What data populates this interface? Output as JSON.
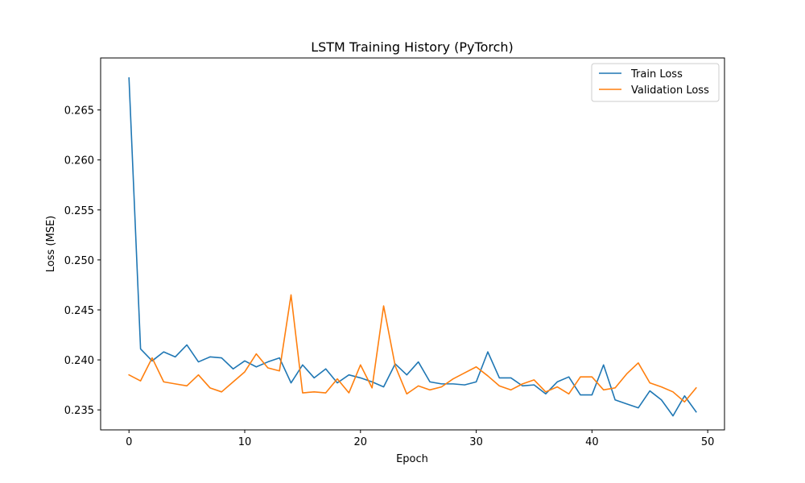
{
  "chart_data": {
    "type": "line",
    "title": "LSTM Training History (PyTorch)",
    "xlabel": "Epoch",
    "ylabel": "Loss (MSE)",
    "xlim": [
      -2.45,
      51.45
    ],
    "ylim": [
      0.233,
      0.2702
    ],
    "xticks": [
      0,
      10,
      20,
      30,
      40,
      50
    ],
    "yticks": [
      0.235,
      0.24,
      0.245,
      0.25,
      0.255,
      0.26,
      0.265
    ],
    "ytick_labels": [
      "0.235",
      "0.240",
      "0.245",
      "0.250",
      "0.255",
      "0.260",
      "0.265"
    ],
    "grid": false,
    "legend_position": "top-right",
    "x": [
      0,
      1,
      2,
      3,
      4,
      5,
      6,
      7,
      8,
      9,
      10,
      11,
      12,
      13,
      14,
      15,
      16,
      17,
      18,
      19,
      20,
      21,
      22,
      23,
      24,
      25,
      26,
      27,
      28,
      29,
      30,
      31,
      32,
      33,
      34,
      35,
      36,
      37,
      38,
      39,
      40,
      41,
      42,
      43,
      44,
      45,
      46,
      47,
      48,
      49
    ],
    "series": [
      {
        "name": "Train Loss",
        "color": "#1f77b4",
        "values": [
          0.2682,
          0.2411,
          0.2399,
          0.2408,
          0.2403,
          0.2415,
          0.2398,
          0.2403,
          0.2402,
          0.2391,
          0.2399,
          0.2393,
          0.2398,
          0.2402,
          0.2377,
          0.2395,
          0.2382,
          0.2391,
          0.2377,
          0.2385,
          0.2382,
          0.2378,
          0.2373,
          0.2396,
          0.2385,
          0.2398,
          0.2378,
          0.2376,
          0.2376,
          0.2375,
          0.2378,
          0.2408,
          0.2382,
          0.2382,
          0.2374,
          0.2375,
          0.2366,
          0.2378,
          0.2383,
          0.2365,
          0.2365,
          0.2395,
          0.236,
          0.2356,
          0.2352,
          0.2369,
          0.236,
          0.2344,
          0.2364,
          0.2348
        ]
      },
      {
        "name": "Validation Loss",
        "color": "#ff7f0e",
        "values": [
          0.2385,
          0.2379,
          0.2402,
          0.2378,
          0.2376,
          0.2374,
          0.2385,
          0.2372,
          0.2368,
          0.2378,
          0.2388,
          0.2406,
          0.2392,
          0.2389,
          0.2465,
          0.2367,
          0.2368,
          0.2367,
          0.2381,
          0.2367,
          0.2395,
          0.2372,
          0.2454,
          0.2394,
          0.2366,
          0.2374,
          0.237,
          0.2373,
          0.2381,
          0.2387,
          0.2393,
          0.2384,
          0.2374,
          0.237,
          0.2376,
          0.238,
          0.2368,
          0.2373,
          0.2366,
          0.2383,
          0.2383,
          0.237,
          0.2372,
          0.2386,
          0.2397,
          0.2377,
          0.2373,
          0.2368,
          0.2358,
          0.2372
        ]
      }
    ]
  }
}
